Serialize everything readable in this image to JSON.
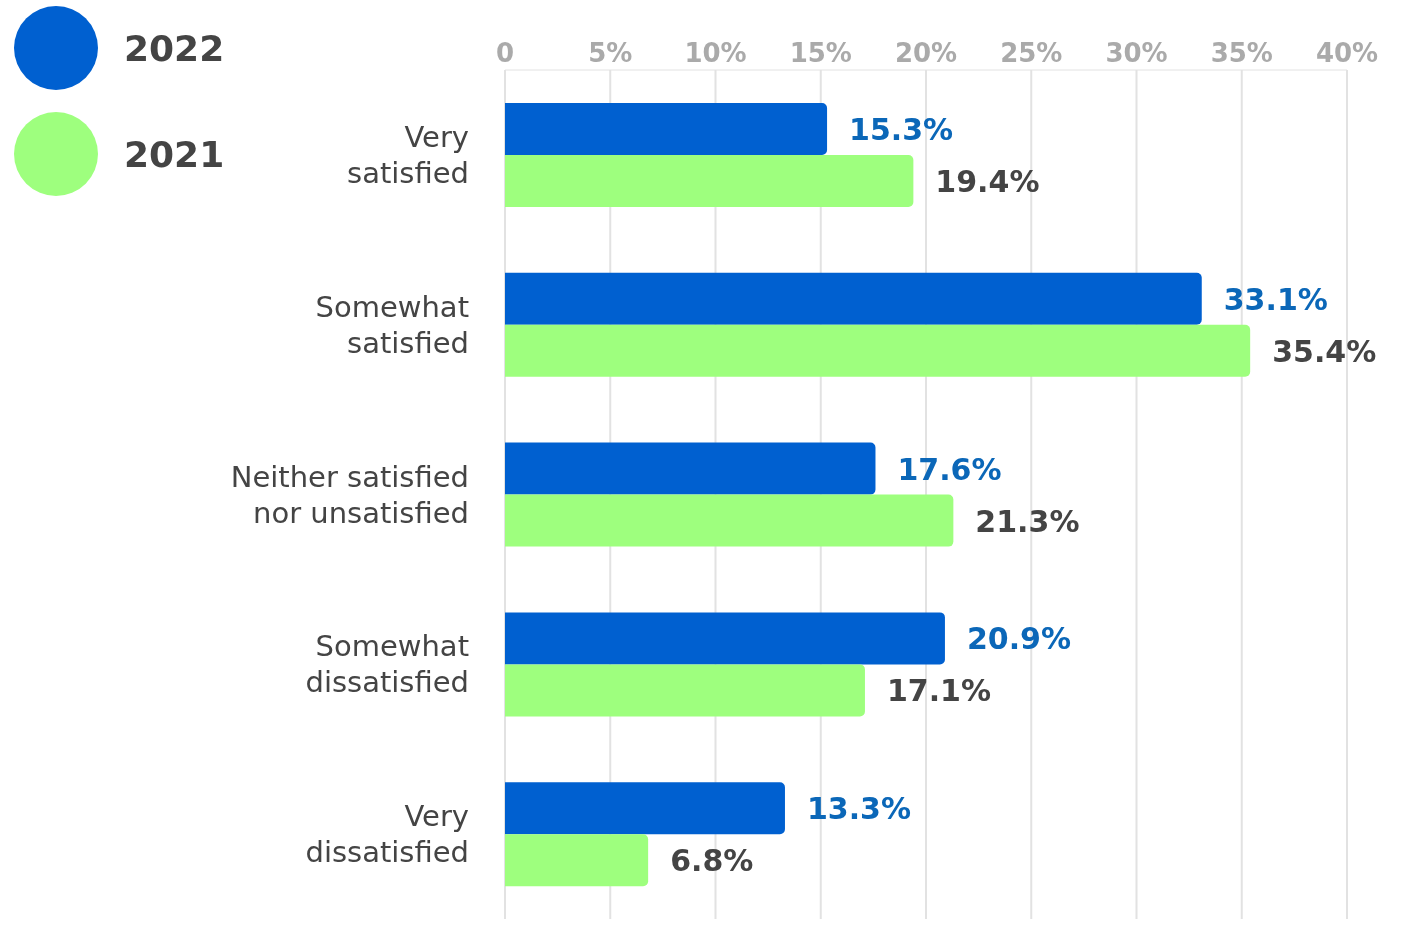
{
  "chart_data": {
    "type": "bar",
    "orientation": "horizontal",
    "categories": [
      "Very satisfied",
      "Somewhat satisfied",
      "Neither satisfied nor unsatisfied",
      "Somewhat dissatisfied",
      "Very dissatisfied"
    ],
    "series": [
      {
        "name": "2022",
        "color": "#0060d0",
        "values": [
          15.3,
          33.1,
          17.6,
          20.9,
          13.3
        ],
        "value_labels": [
          "15.3%",
          "33.1%",
          "17.6%",
          "20.9%",
          "13.3%"
        ]
      },
      {
        "name": "2021",
        "color": "#9eff7e",
        "values": [
          19.4,
          35.4,
          21.3,
          17.1,
          6.8
        ],
        "value_labels": [
          "19.4%",
          "35.4%",
          "21.3%",
          "17.1%",
          "6.8%"
        ]
      }
    ],
    "xlim": [
      0,
      40
    ],
    "xticks": [
      0,
      {
        "value": 5,
        "label": "5%"
      },
      {
        "value": 10,
        "label": "10%"
      },
      {
        "value": 15,
        "label": "15%"
      },
      {
        "value": 20,
        "label": "20%"
      },
      {
        "value": 25,
        "label": "25%"
      },
      {
        "value": 30,
        "label": "30%"
      },
      {
        "value": 35,
        "label": "35%"
      },
      {
        "value": 40,
        "label": "40%"
      }
    ],
    "grid": "x",
    "legend": "top left"
  }
}
